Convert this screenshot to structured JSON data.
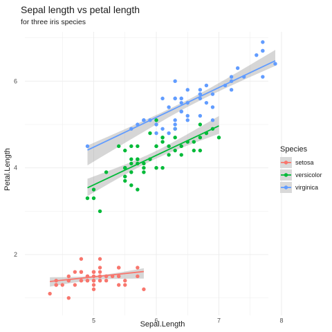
{
  "chart_data": {
    "type": "scatter",
    "title": "Sepal length vs petal length",
    "subtitle": "for three iris species",
    "xlabel": "Sepal.Length",
    "ylabel": "Petal.Length",
    "xlim": [
      4.2,
      8.0
    ],
    "ylim": [
      0.9,
      7.05
    ],
    "x_ticks": [
      5,
      6,
      7,
      8
    ],
    "y_ticks": [
      2,
      4,
      6
    ],
    "grid": true,
    "legend": {
      "title": "Species",
      "placement": "right"
    },
    "series": [
      {
        "name": "setosa",
        "color": "#F8766D",
        "points": [
          [
            5.1,
            1.4
          ],
          [
            4.9,
            1.4
          ],
          [
            4.7,
            1.3
          ],
          [
            4.6,
            1.5
          ],
          [
            5.0,
            1.4
          ],
          [
            5.4,
            1.7
          ],
          [
            4.6,
            1.4
          ],
          [
            5.0,
            1.5
          ],
          [
            4.4,
            1.4
          ],
          [
            4.9,
            1.5
          ],
          [
            5.4,
            1.5
          ],
          [
            4.8,
            1.6
          ],
          [
            4.8,
            1.4
          ],
          [
            4.3,
            1.1
          ],
          [
            5.8,
            1.2
          ],
          [
            5.7,
            1.5
          ],
          [
            5.4,
            1.3
          ],
          [
            5.1,
            1.4
          ],
          [
            5.7,
            1.7
          ],
          [
            5.1,
            1.5
          ],
          [
            5.4,
            1.7
          ],
          [
            5.1,
            1.5
          ],
          [
            4.6,
            1.0
          ],
          [
            5.1,
            1.7
          ],
          [
            4.8,
            1.9
          ],
          [
            5.0,
            1.6
          ],
          [
            5.0,
            1.6
          ],
          [
            5.2,
            1.5
          ],
          [
            5.2,
            1.4
          ],
          [
            4.7,
            1.6
          ],
          [
            4.8,
            1.6
          ],
          [
            5.4,
            1.5
          ],
          [
            5.2,
            1.5
          ],
          [
            5.5,
            1.4
          ],
          [
            4.9,
            1.5
          ],
          [
            5.0,
            1.2
          ],
          [
            5.5,
            1.3
          ],
          [
            4.9,
            1.4
          ],
          [
            4.4,
            1.3
          ],
          [
            5.1,
            1.5
          ],
          [
            5.0,
            1.3
          ],
          [
            4.5,
            1.3
          ],
          [
            4.4,
            1.3
          ],
          [
            5.0,
            1.6
          ],
          [
            5.1,
            1.9
          ],
          [
            4.8,
            1.4
          ],
          [
            5.1,
            1.6
          ],
          [
            4.6,
            1.4
          ],
          [
            5.3,
            1.5
          ],
          [
            5.0,
            1.4
          ]
        ],
        "fit": {
          "x": [
            4.3,
            5.8
          ],
          "y": [
            1.38,
            1.61
          ]
        }
      },
      {
        "name": "versicolor",
        "color": "#00BA38",
        "points": [
          [
            7.0,
            4.7
          ],
          [
            6.4,
            4.5
          ],
          [
            6.9,
            4.9
          ],
          [
            5.5,
            4.0
          ],
          [
            6.5,
            4.6
          ],
          [
            5.7,
            4.5
          ],
          [
            6.3,
            4.7
          ],
          [
            4.9,
            3.3
          ],
          [
            6.6,
            4.6
          ],
          [
            5.2,
            3.9
          ],
          [
            5.0,
            3.5
          ],
          [
            5.9,
            4.2
          ],
          [
            6.0,
            4.0
          ],
          [
            6.1,
            4.7
          ],
          [
            5.6,
            3.6
          ],
          [
            6.7,
            4.4
          ],
          [
            5.6,
            4.5
          ],
          [
            5.8,
            4.1
          ],
          [
            6.2,
            4.5
          ],
          [
            5.6,
            3.9
          ],
          [
            5.9,
            4.8
          ],
          [
            6.1,
            4.0
          ],
          [
            6.3,
            4.9
          ],
          [
            6.1,
            4.7
          ],
          [
            6.4,
            4.3
          ],
          [
            6.6,
            4.4
          ],
          [
            6.8,
            4.8
          ],
          [
            6.7,
            5.0
          ],
          [
            6.0,
            4.5
          ],
          [
            5.7,
            3.5
          ],
          [
            5.5,
            3.8
          ],
          [
            5.5,
            3.7
          ],
          [
            5.8,
            3.9
          ],
          [
            6.0,
            5.1
          ],
          [
            5.4,
            4.5
          ],
          [
            6.0,
            4.5
          ],
          [
            6.7,
            4.7
          ],
          [
            6.3,
            4.4
          ],
          [
            5.6,
            4.1
          ],
          [
            5.5,
            4.0
          ],
          [
            5.5,
            4.4
          ],
          [
            6.1,
            4.6
          ],
          [
            5.8,
            4.0
          ],
          [
            5.0,
            3.3
          ],
          [
            5.6,
            4.2
          ],
          [
            5.7,
            4.2
          ],
          [
            5.7,
            4.2
          ],
          [
            6.2,
            4.3
          ],
          [
            5.1,
            3.0
          ],
          [
            5.7,
            4.1
          ]
        ],
        "fit": {
          "x": [
            4.9,
            7.0
          ],
          "y": [
            3.54,
            4.97
          ]
        }
      },
      {
        "name": "virginica",
        "color": "#619CFF",
        "points": [
          [
            6.3,
            6.0
          ],
          [
            5.8,
            5.1
          ],
          [
            7.1,
            5.9
          ],
          [
            6.3,
            5.6
          ],
          [
            6.5,
            5.8
          ],
          [
            7.6,
            6.6
          ],
          [
            4.9,
            4.5
          ],
          [
            7.3,
            6.3
          ],
          [
            6.7,
            5.8
          ],
          [
            7.2,
            6.1
          ],
          [
            6.5,
            5.1
          ],
          [
            6.4,
            5.3
          ],
          [
            6.8,
            5.5
          ],
          [
            5.7,
            5.0
          ],
          [
            5.8,
            5.1
          ],
          [
            6.4,
            5.3
          ],
          [
            6.5,
            5.5
          ],
          [
            7.7,
            6.7
          ],
          [
            7.7,
            6.9
          ],
          [
            6.0,
            5.0
          ],
          [
            6.9,
            5.7
          ],
          [
            5.6,
            4.9
          ],
          [
            7.7,
            6.7
          ],
          [
            6.3,
            4.9
          ],
          [
            6.7,
            5.7
          ],
          [
            7.2,
            6.0
          ],
          [
            6.2,
            4.8
          ],
          [
            6.1,
            4.9
          ],
          [
            6.4,
            5.6
          ],
          [
            7.2,
            5.8
          ],
          [
            7.4,
            6.1
          ],
          [
            7.9,
            6.4
          ],
          [
            6.4,
            5.6
          ],
          [
            6.3,
            5.1
          ],
          [
            6.1,
            5.6
          ],
          [
            7.7,
            6.1
          ],
          [
            6.3,
            5.6
          ],
          [
            6.4,
            5.5
          ],
          [
            6.0,
            4.8
          ],
          [
            6.9,
            5.4
          ],
          [
            6.7,
            5.6
          ],
          [
            6.9,
            5.1
          ],
          [
            5.8,
            5.1
          ],
          [
            6.8,
            5.9
          ],
          [
            6.7,
            5.7
          ],
          [
            6.7,
            5.2
          ],
          [
            6.3,
            5.0
          ],
          [
            6.5,
            5.2
          ],
          [
            6.2,
            5.4
          ],
          [
            5.9,
            5.1
          ]
        ],
        "fit": {
          "x": [
            4.9,
            7.9
          ],
          "y": [
            4.41,
            6.47
          ]
        }
      }
    ]
  }
}
